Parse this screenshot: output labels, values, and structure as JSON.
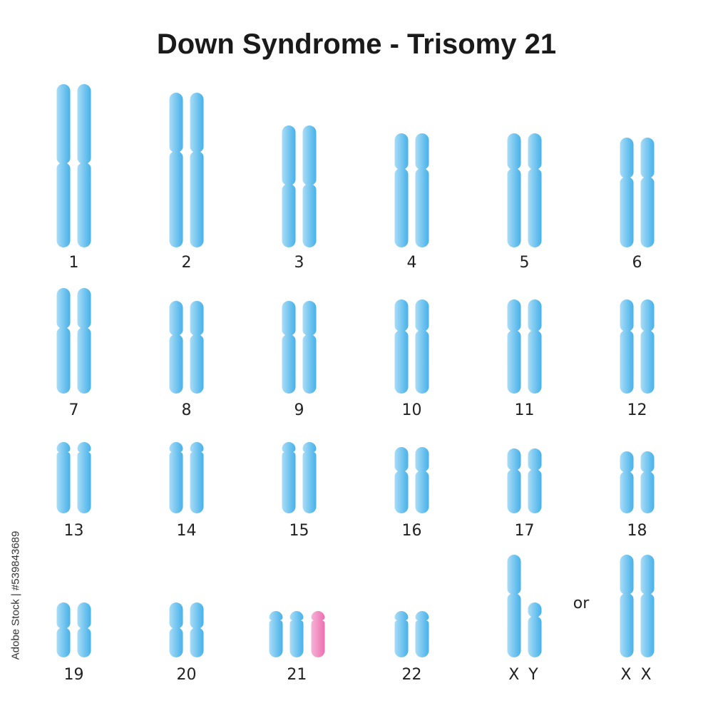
{
  "title": "Down Syndrome - Trisomy 21",
  "colors": {
    "normal_light": "#a9dcf6",
    "normal_dark": "#46b1ea",
    "extra_light": "#f7b3d6",
    "extra_dark": "#ec6fb0"
  },
  "or_label": "or",
  "watermark": "Adobe Stock | #539843689",
  "chromosome_pairs": [
    {
      "label": "1",
      "copies": 2
    },
    {
      "label": "2",
      "copies": 2
    },
    {
      "label": "3",
      "copies": 2
    },
    {
      "label": "4",
      "copies": 2
    },
    {
      "label": "5",
      "copies": 2
    },
    {
      "label": "6",
      "copies": 2
    },
    {
      "label": "7",
      "copies": 2
    },
    {
      "label": "8",
      "copies": 2
    },
    {
      "label": "9",
      "copies": 2
    },
    {
      "label": "10",
      "copies": 2
    },
    {
      "label": "11",
      "copies": 2
    },
    {
      "label": "12",
      "copies": 2
    },
    {
      "label": "13",
      "copies": 2
    },
    {
      "label": "14",
      "copies": 2
    },
    {
      "label": "15",
      "copies": 2
    },
    {
      "label": "16",
      "copies": 2
    },
    {
      "label": "17",
      "copies": 2
    },
    {
      "label": "18",
      "copies": 2
    },
    {
      "label": "19",
      "copies": 2
    },
    {
      "label": "20",
      "copies": 2
    },
    {
      "label": "21",
      "copies": 3,
      "highlighted_copy": 3
    },
    {
      "label": "22",
      "copies": 2
    },
    {
      "label": "X Y",
      "copies": 2
    },
    {
      "label": "X X",
      "copies": 2
    }
  ]
}
